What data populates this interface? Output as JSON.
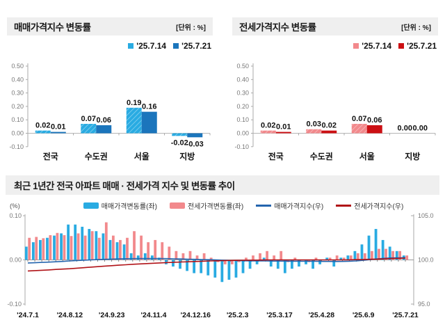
{
  "chart_data": [
    {
      "type": "bar",
      "title": "매매가격지수 변동률",
      "unit": "[단위 : %]",
      "categories": [
        "전국",
        "수도권",
        "서울",
        "지방"
      ],
      "ylim": [
        -0.1,
        0.5
      ],
      "yticks": [
        0.5,
        0.4,
        0.3,
        0.2,
        0.1,
        0.0,
        -0.1
      ],
      "grid": false,
      "legend_position": "top-right",
      "series": [
        {
          "name": "'25.7.14",
          "color": "#29ABE2",
          "hatch": true,
          "values": [
            0.02,
            0.07,
            0.19,
            -0.02
          ]
        },
        {
          "name": "'25.7.21",
          "color": "#1B75BC",
          "hatch": false,
          "values": [
            0.01,
            0.06,
            0.16,
            -0.03
          ]
        }
      ]
    },
    {
      "type": "bar",
      "title": "전세가격지수 변동률",
      "unit": "[단위 : %]",
      "categories": [
        "전국",
        "수도권",
        "서울",
        "지방"
      ],
      "ylim": [
        -0.1,
        0.5
      ],
      "yticks": [
        0.5,
        0.4,
        0.3,
        0.2,
        0.1,
        0.0,
        -0.1
      ],
      "grid": false,
      "legend_position": "top-right",
      "series": [
        {
          "name": "'25.7.14",
          "color": "#F2898C",
          "hatch": true,
          "values": [
            0.02,
            0.03,
            0.07,
            0.0
          ]
        },
        {
          "name": "'25.7.21",
          "color": "#CC0F13",
          "hatch": false,
          "values": [
            0.01,
            0.02,
            0.06,
            0.0
          ]
        }
      ]
    },
    {
      "type": "bar+line",
      "title": "최근 1년간 전국 아파트 매매 · 전세가격 지수 및 변동률 추이",
      "ylabel_left": "(%)",
      "x_labels": [
        "'24.7.1",
        "'24.8.12",
        "'24.9.23",
        "'24.11.4",
        "'24.12.16",
        "'25.2.3",
        "'25.3.17",
        "'25.4.28",
        "'25.6.9",
        "'25.7.21"
      ],
      "label_every": 6,
      "n_points": 55,
      "ylim_left": [
        -0.1,
        0.1
      ],
      "yticks_left": [
        0.1,
        0.0,
        -0.1
      ],
      "ylim_right": [
        95.0,
        105.0
      ],
      "yticks_right": [
        105.0,
        100.0,
        95.0
      ],
      "legend_position": "top-center",
      "series": [
        {
          "name": "매매가격변동률(좌)",
          "type": "bar",
          "axis": "left",
          "color": "#29ABE2",
          "values": [
            0.03,
            0.04,
            0.045,
            0.05,
            0.055,
            0.06,
            0.08,
            0.08,
            0.075,
            0.07,
            0.065,
            0.06,
            0.045,
            0.04,
            0.035,
            0.015,
            0.01,
            0.015,
            0.01,
            0.005,
            -0.01,
            -0.015,
            -0.02,
            -0.025,
            -0.03,
            -0.03,
            -0.035,
            -0.04,
            -0.05,
            -0.045,
            -0.04,
            -0.03,
            -0.02,
            -0.01,
            0.005,
            -0.015,
            -0.02,
            -0.03,
            -0.02,
            -0.015,
            -0.01,
            -0.02,
            -0.01,
            0.005,
            -0.015,
            0.005,
            0.01,
            0.02,
            0.035,
            0.055,
            0.07,
            0.045,
            0.03,
            0.02,
            0.01
          ]
        },
        {
          "name": "전세가격변동률(좌)",
          "type": "bar",
          "axis": "left",
          "color": "#F2898C",
          "values": [
            0.05,
            0.052,
            0.049,
            0.056,
            0.061,
            0.056,
            0.054,
            0.06,
            0.055,
            0.065,
            0.05,
            0.085,
            0.055,
            0.045,
            0.05,
            0.065,
            0.055,
            0.04,
            0.045,
            0.04,
            0.03,
            0.02,
            0.015,
            0.02,
            0.01,
            0.015,
            0.005,
            -0.005,
            -0.01,
            -0.01,
            -0.005,
            0.005,
            0.01,
            0.015,
            0.02,
            0.01,
            0.02,
            -0.005,
            0.005,
            0.0,
            -0.005,
            0.005,
            0.0,
            0.005,
            0.01,
            0.005,
            0.01,
            0.015,
            0.015,
            0.02,
            0.025,
            0.025,
            0.02,
            0.02,
            0.01
          ]
        },
        {
          "name": "매매가격지수(우)",
          "type": "line",
          "axis": "right",
          "color": "#2364AE",
          "values": [
            99.65,
            99.68,
            99.72,
            99.75,
            99.79,
            99.83,
            99.88,
            99.92,
            99.96,
            100.0,
            100.03,
            100.06,
            100.09,
            100.11,
            100.13,
            100.14,
            100.15,
            100.15,
            100.15,
            100.15,
            100.14,
            100.12,
            100.1,
            100.08,
            100.06,
            100.04,
            100.02,
            100.0,
            99.97,
            99.94,
            99.92,
            99.9,
            99.89,
            99.88,
            99.88,
            99.87,
            99.87,
            99.86,
            99.85,
            99.85,
            99.84,
            99.84,
            99.83,
            99.83,
            99.82,
            99.83,
            99.85,
            99.89,
            99.95,
            100.03,
            100.12,
            100.18,
            100.22,
            100.24,
            100.25
          ]
        },
        {
          "name": "전세가격지수(우)",
          "type": "line",
          "axis": "right",
          "color": "#B01217",
          "values": [
            98.75,
            98.79,
            98.83,
            98.87,
            98.92,
            98.96,
            99.0,
            99.06,
            99.12,
            99.18,
            99.24,
            99.3,
            99.35,
            99.4,
            99.45,
            99.5,
            99.54,
            99.58,
            99.62,
            99.66,
            99.7,
            99.73,
            99.76,
            99.79,
            99.82,
            99.85,
            99.88,
            99.9,
            99.92,
            99.94,
            99.95,
            99.96,
            99.97,
            99.98,
            99.99,
            100.0,
            100.0,
            100.0,
            100.0,
            100.0,
            100.0,
            100.0,
            100.0,
            100.0,
            100.0,
            100.0,
            100.01,
            100.03,
            100.05,
            100.07,
            100.09,
            100.12,
            100.15,
            100.17,
            100.2
          ]
        }
      ]
    }
  ],
  "colors": {
    "header_bg": "#EFEFEF",
    "axis": "#AAAAAA",
    "tick_text": "#777777",
    "label_text": "#1A1A1A",
    "sale_light": "#29ABE2",
    "sale_dark": "#1B75BC",
    "jeonse_light": "#F2898C",
    "jeonse_dark": "#CC0F13",
    "sale_index_line": "#2364AE",
    "jeonse_index_line": "#B01217"
  }
}
